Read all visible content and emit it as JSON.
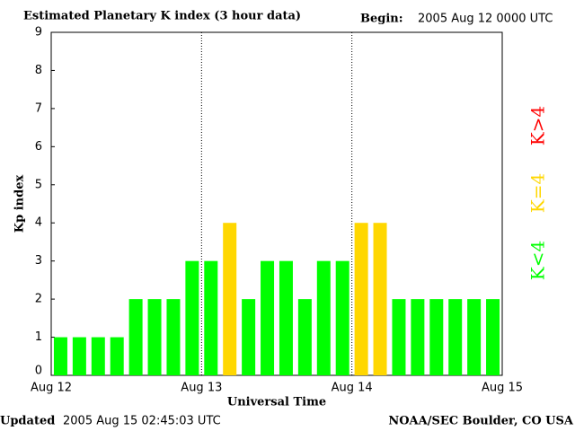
{
  "chart_data": {
    "type": "bar",
    "title": "Estimated Planetary K index (3 hour data)",
    "begin_label": "Begin:",
    "begin": "2005 Aug 12 0000 UTC",
    "updated_label": "Updated",
    "updated": "2005 Aug 15 02:45:03 UTC",
    "source": "NOAA/SEC Boulder, CO USA",
    "xlabel": "Universal Time",
    "ylabel": "Kp index",
    "xticks": [
      "Aug 12",
      "Aug 13",
      "Aug 14",
      "Aug 15"
    ],
    "values": [
      1,
      1,
      1,
      1,
      2,
      2,
      2,
      3,
      3,
      4,
      2,
      3,
      3,
      2,
      3,
      3,
      4,
      4,
      2,
      2,
      2,
      2,
      2,
      2
    ],
    "colors": [
      "#00ff00",
      "#00ff00",
      "#00ff00",
      "#00ff00",
      "#00ff00",
      "#00ff00",
      "#00ff00",
      "#00ff00",
      "#00ff00",
      "#ffd700",
      "#00ff00",
      "#00ff00",
      "#00ff00",
      "#00ff00",
      "#00ff00",
      "#00ff00",
      "#ffd700",
      "#ffd700",
      "#00ff00",
      "#00ff00",
      "#00ff00",
      "#00ff00",
      "#00ff00",
      "#00ff00"
    ],
    "ylim": [
      0,
      9
    ],
    "yticks": [
      0,
      1,
      2,
      3,
      4,
      5,
      6,
      7,
      8,
      9
    ],
    "legend": [
      {
        "label": "K<4",
        "color": "#00ff00"
      },
      {
        "label": "K=4",
        "color": "#ffd700"
      },
      {
        "label": "K>4",
        "color": "#ff0000"
      }
    ]
  }
}
